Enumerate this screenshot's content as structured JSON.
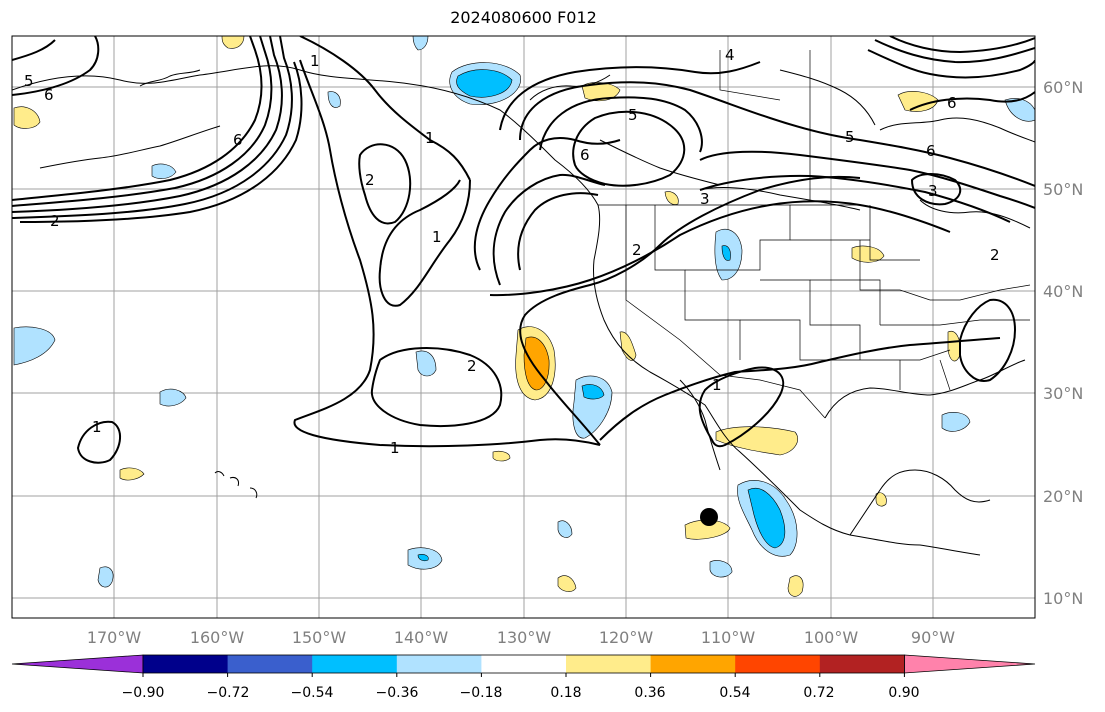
{
  "title": "2024080600 F012",
  "lon_labels": [
    "170°W",
    "160°W",
    "150°W",
    "140°W",
    "130°W",
    "120°W",
    "110°W",
    "100°W",
    "90°W"
  ],
  "lat_labels": [
    "60°N",
    "50°N",
    "40°N",
    "30°N",
    "20°N",
    "10°N"
  ],
  "colorbar": {
    "ticks": [
      "−0.90",
      "−0.72",
      "−0.54",
      "−0.36",
      "−0.18",
      "0.18",
      "0.36",
      "0.54",
      "0.72",
      "0.90"
    ],
    "colors": [
      "#9b30d9",
      "#00008b",
      "#3a5fcd",
      "#00bfff",
      "#b0e2ff",
      "#ffffff",
      "#ffec8b",
      "#ffa500",
      "#ff4500",
      "#b22222",
      "#ff82ab"
    ]
  },
  "contour_labels": [
    "1",
    "1",
    "1",
    "1",
    "1",
    "1",
    "2",
    "2",
    "2",
    "2",
    "2",
    "3",
    "3",
    "4",
    "5",
    "5",
    "5",
    "6",
    "6",
    "6",
    "6",
    "6"
  ]
}
